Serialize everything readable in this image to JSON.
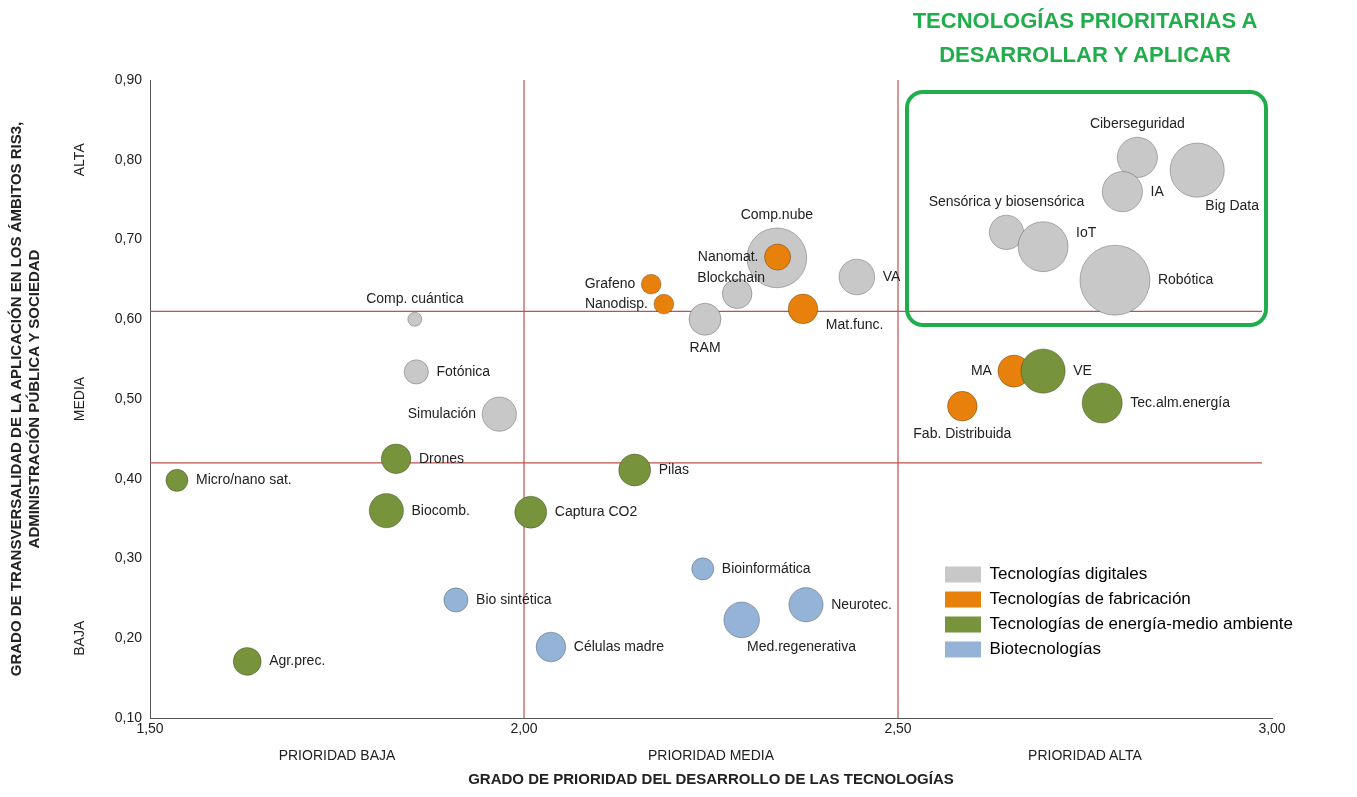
{
  "chart_data": {
    "type": "bubble",
    "xlabel": "GRADO DE PRIORIDAD DEL DESARROLLO DE LAS TECNOLOGÍAS",
    "ylabel": "GRADO DE TRANSVERSALIDAD DE LA APLICACIÓN EN LOS ÁMBITOS RIS3, ADMINISTRACIÓN PÚBLICA Y SOCIEDAD",
    "annotations": [
      "TECNOLOGÍAS PRIORITARIAS A DESARROLLAR Y APLICAR",
      "ALTA",
      "MEDIA",
      "BAJA",
      "PRIORIDAD BAJA",
      "PRIORIDAD MEDIA",
      "PRIORIDAD ALTA"
    ],
    "xlim": [
      1.5,
      3.0
    ],
    "xticks": [
      {
        "value": 1.5,
        "label": "1,50"
      },
      {
        "value": 2.0,
        "label": "2,00"
      },
      {
        "value": 2.5,
        "label": "2,50"
      },
      {
        "value": 3.0,
        "label": "3,00"
      }
    ],
    "ylim": [
      0.1,
      0.9
    ],
    "yticks": [
      {
        "value": 0.1,
        "label": "0,10"
      },
      {
        "value": 0.2,
        "label": "0,20"
      },
      {
        "value": 0.3,
        "label": "0,30"
      },
      {
        "value": 0.4,
        "label": "0,40"
      },
      {
        "value": 0.5,
        "label": "0,50"
      },
      {
        "value": 0.6,
        "label": "0,60"
      },
      {
        "value": 0.7,
        "label": "0,70"
      },
      {
        "value": 0.8,
        "label": "0,80"
      },
      {
        "value": 0.9,
        "label": "0,90"
      }
    ],
    "grid": false,
    "legend": "bottom right",
    "ref_lines": [
      {
        "axis": "x",
        "value": 2.0,
        "color": "#c0504d"
      },
      {
        "axis": "x",
        "value": 2.5,
        "color": "#c0504d"
      },
      {
        "axis": "y",
        "value": 0.61,
        "color": "#c0504d"
      },
      {
        "axis": "y",
        "value": 0.42,
        "color": "#c0504d"
      }
    ],
    "series": [
      {
        "name": "Tecnologías digitales",
        "color": "#c8c8c8",
        "x": [
          2.82,
          2.9,
          2.8,
          2.645,
          2.694,
          2.79,
          2.338,
          2.445,
          2.285,
          2.242,
          1.854,
          1.856,
          1.967
        ],
        "values": [
          0.803,
          0.787,
          0.76,
          0.709,
          0.691,
          0.649,
          0.677,
          0.653,
          0.632,
          0.6,
          0.6,
          0.534,
          0.481
        ],
        "sizes": [
          0.33,
          0.6,
          0.33,
          0.24,
          0.51,
          1,
          0.73,
          0.26,
          0.18,
          0.21,
          0.04,
          0.12,
          0.24
        ],
        "value_labels": [
          "Ciberseguridad",
          "Big Data",
          "IA",
          "Sensórica y biosensórica",
          "IoT",
          "Robótica",
          "Comp.nube",
          "VA",
          "Blockchain",
          "RAM",
          "Comp. cuántica",
          "Fotónica",
          "Simulación"
        ]
      },
      {
        "name": "Tecnologías de fabricación",
        "color": "#e8800c",
        "x": [
          2.17,
          2.187,
          2.339,
          2.373,
          2.655,
          2.586
        ],
        "values": [
          0.644,
          0.619,
          0.678,
          0.613,
          0.535,
          0.491
        ],
        "sizes": [
          0.08,
          0.08,
          0.14,
          0.18,
          0.21,
          0.18
        ],
        "value_labels": [
          "Grafeno",
          "Nanodisp.",
          "Nanomat.",
          "Mat.func.",
          "MA",
          "Fab. Distribuida"
        ]
      },
      {
        "name": "Tecnologías de energía-medio ambiente",
        "color": "#77933c",
        "x": [
          2.694,
          2.773,
          1.829,
          1.536,
          2.148,
          1.816,
          2.009,
          1.63
        ],
        "values": [
          0.535,
          0.495,
          0.425,
          0.398,
          0.411,
          0.36,
          0.358,
          0.171
        ],
        "sizes": [
          0.4,
          0.33,
          0.18,
          0.1,
          0.21,
          0.24,
          0.21,
          0.16
        ],
        "value_labels": [
          "VE",
          "Tec.alm.energía",
          "Drones",
          "Micro/nano sat.",
          "Pilas",
          "Biocomb.",
          "Captura CO2",
          "Agr.prec."
        ]
      },
      {
        "name": "Biotecnologías",
        "color": "#95b3d7",
        "x": [
          2.239,
          1.909,
          2.036,
          2.291,
          2.377
        ],
        "values": [
          0.287,
          0.248,
          0.189,
          0.223,
          0.242
        ],
        "sizes": [
          0.1,
          0.12,
          0.18,
          0.26,
          0.24
        ],
        "value_labels": [
          "Bioinformática",
          "Bio sintética",
          "Células madre",
          "Med.regenerativa",
          "Neurotec."
        ]
      }
    ]
  }
}
